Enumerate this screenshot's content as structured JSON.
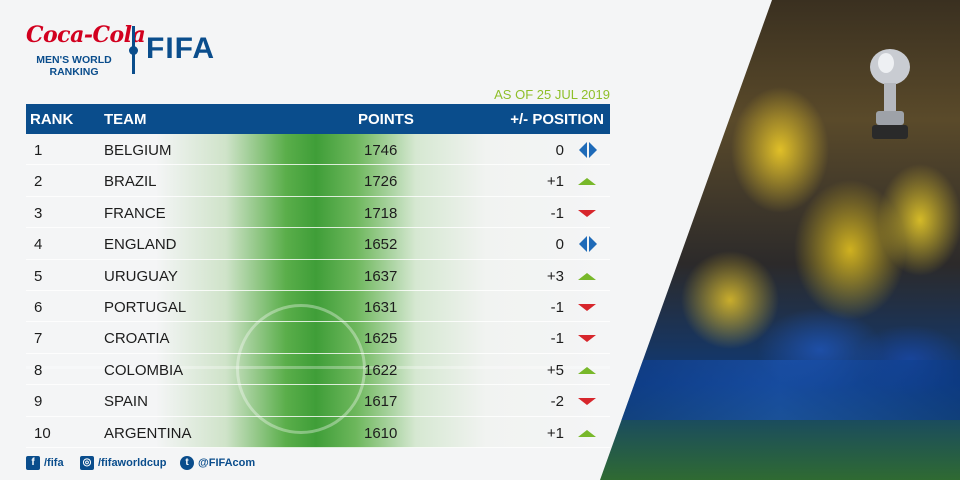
{
  "brand": {
    "sponsor": "Coca-Cola",
    "subtitle_line1": "MEN'S WORLD",
    "subtitle_line2": "RANKING",
    "organization": "FIFA"
  },
  "as_of": "AS OF 25 JUL 2019",
  "columns": {
    "rank": "RANK",
    "team": "TEAM",
    "points": "POINTS",
    "position": "+/- POSITION"
  },
  "rows": [
    {
      "rank": "1",
      "team": "BELGIUM",
      "points": "1746",
      "change": "0",
      "trend": "same"
    },
    {
      "rank": "2",
      "team": "BRAZIL",
      "points": "1726",
      "change": "+1",
      "trend": "up"
    },
    {
      "rank": "3",
      "team": "FRANCE",
      "points": "1718",
      "change": "-1",
      "trend": "down"
    },
    {
      "rank": "4",
      "team": "ENGLAND",
      "points": "1652",
      "change": "0",
      "trend": "same"
    },
    {
      "rank": "5",
      "team": "URUGUAY",
      "points": "1637",
      "change": "+3",
      "trend": "up"
    },
    {
      "rank": "6",
      "team": "PORTUGAL",
      "points": "1631",
      "change": "-1",
      "trend": "down"
    },
    {
      "rank": "7",
      "team": "CROATIA",
      "points": "1625",
      "change": "-1",
      "trend": "down"
    },
    {
      "rank": "8",
      "team": "COLOMBIA",
      "points": "1622",
      "change": "+5",
      "trend": "up"
    },
    {
      "rank": "9",
      "team": "SPAIN",
      "points": "1617",
      "change": "-2",
      "trend": "down"
    },
    {
      "rank": "10",
      "team": "ARGENTINA",
      "points": "1610",
      "change": "+1",
      "trend": "up"
    }
  ],
  "social": {
    "facebook": "/fifa",
    "instagram": "/fifaworldcup",
    "twitter": "@FIFAcom",
    "facebook_icon": "facebook-icon",
    "instagram_icon": "instagram-icon",
    "twitter_icon": "twitter-icon"
  },
  "colors": {
    "fifa_blue": "#0a4d8c",
    "coca_cola_red": "#d2001f",
    "date_green": "#8fbf2a",
    "up": "#78b82a",
    "down": "#d7262c",
    "same": "#1e6ab8"
  }
}
